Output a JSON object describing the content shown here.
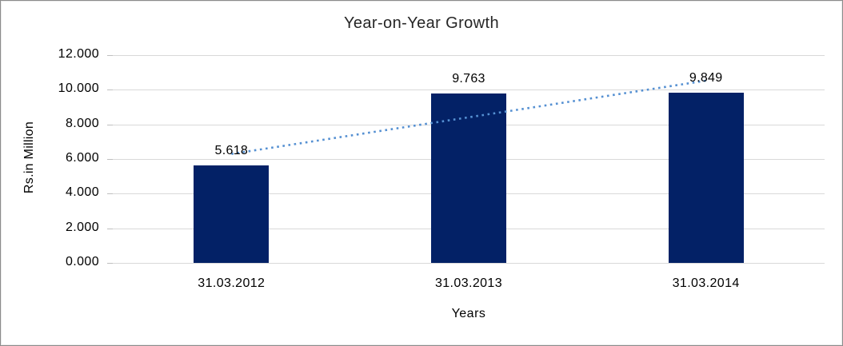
{
  "chart_data": {
    "type": "bar",
    "title": "Year-on-Year Growth",
    "xlabel": "Years",
    "ylabel": "Rs.in Million",
    "categories": [
      "31.03.2012",
      "31.03.2013",
      "31.03.2014"
    ],
    "values": [
      5.618,
      9.763,
      9.849
    ],
    "data_labels": [
      "5.618",
      "9.763",
      "9.849"
    ],
    "ylim": [
      0,
      12
    ],
    "ytick_step": 2,
    "ytick_labels": [
      "0.000",
      "2.000",
      "4.000",
      "6.000",
      "8.000",
      "10.000",
      "12.000"
    ],
    "grid": true,
    "legend": "none",
    "bar_color": "#032166",
    "gridline_color": "#d9d9d9",
    "trendline": {
      "type": "linear",
      "style": "dotted",
      "color": "#5590d2"
    }
  }
}
